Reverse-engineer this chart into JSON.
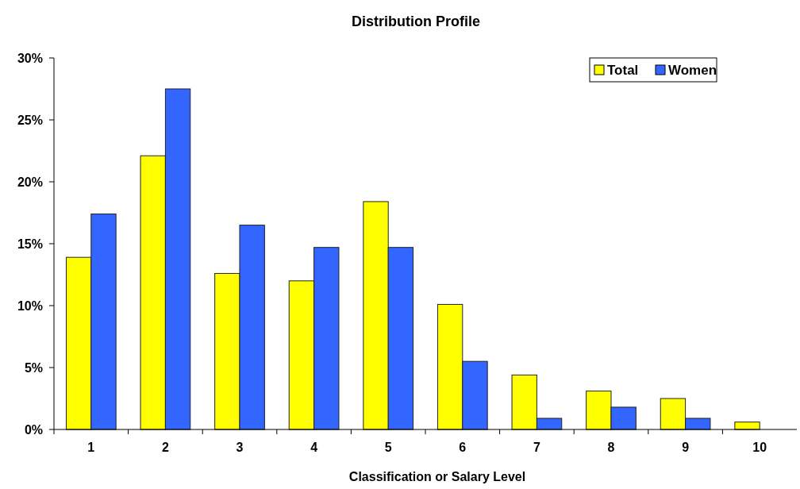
{
  "chart_data": {
    "type": "bar",
    "title": "Distribution Profile",
    "xlabel": "Classification or Salary Level",
    "categories": [
      "1",
      "2",
      "3",
      "4",
      "5",
      "6",
      "7",
      "8",
      "9",
      "10"
    ],
    "series": [
      {
        "name": "Total",
        "color": "#ffff00",
        "values": [
          13.9,
          22.1,
          12.6,
          12.0,
          18.4,
          10.1,
          4.4,
          3.1,
          2.5,
          0.6
        ]
      },
      {
        "name": "Women",
        "color": "#3366ff",
        "values": [
          17.4,
          27.5,
          16.5,
          14.7,
          14.7,
          5.5,
          0.9,
          1.8,
          0.9,
          0
        ]
      }
    ],
    "ylim": [
      0,
      30
    ],
    "yticks": [
      {
        "value": 0,
        "label": "0%"
      },
      {
        "value": 5,
        "label": "5%"
      },
      {
        "value": 10,
        "label": "10%"
      },
      {
        "value": 15,
        "label": "15%"
      },
      {
        "value": 20,
        "label": "20%"
      },
      {
        "value": 25,
        "label": "25%"
      },
      {
        "value": 30,
        "label": "30%"
      }
    ],
    "grid": false,
    "legend": "top right"
  }
}
